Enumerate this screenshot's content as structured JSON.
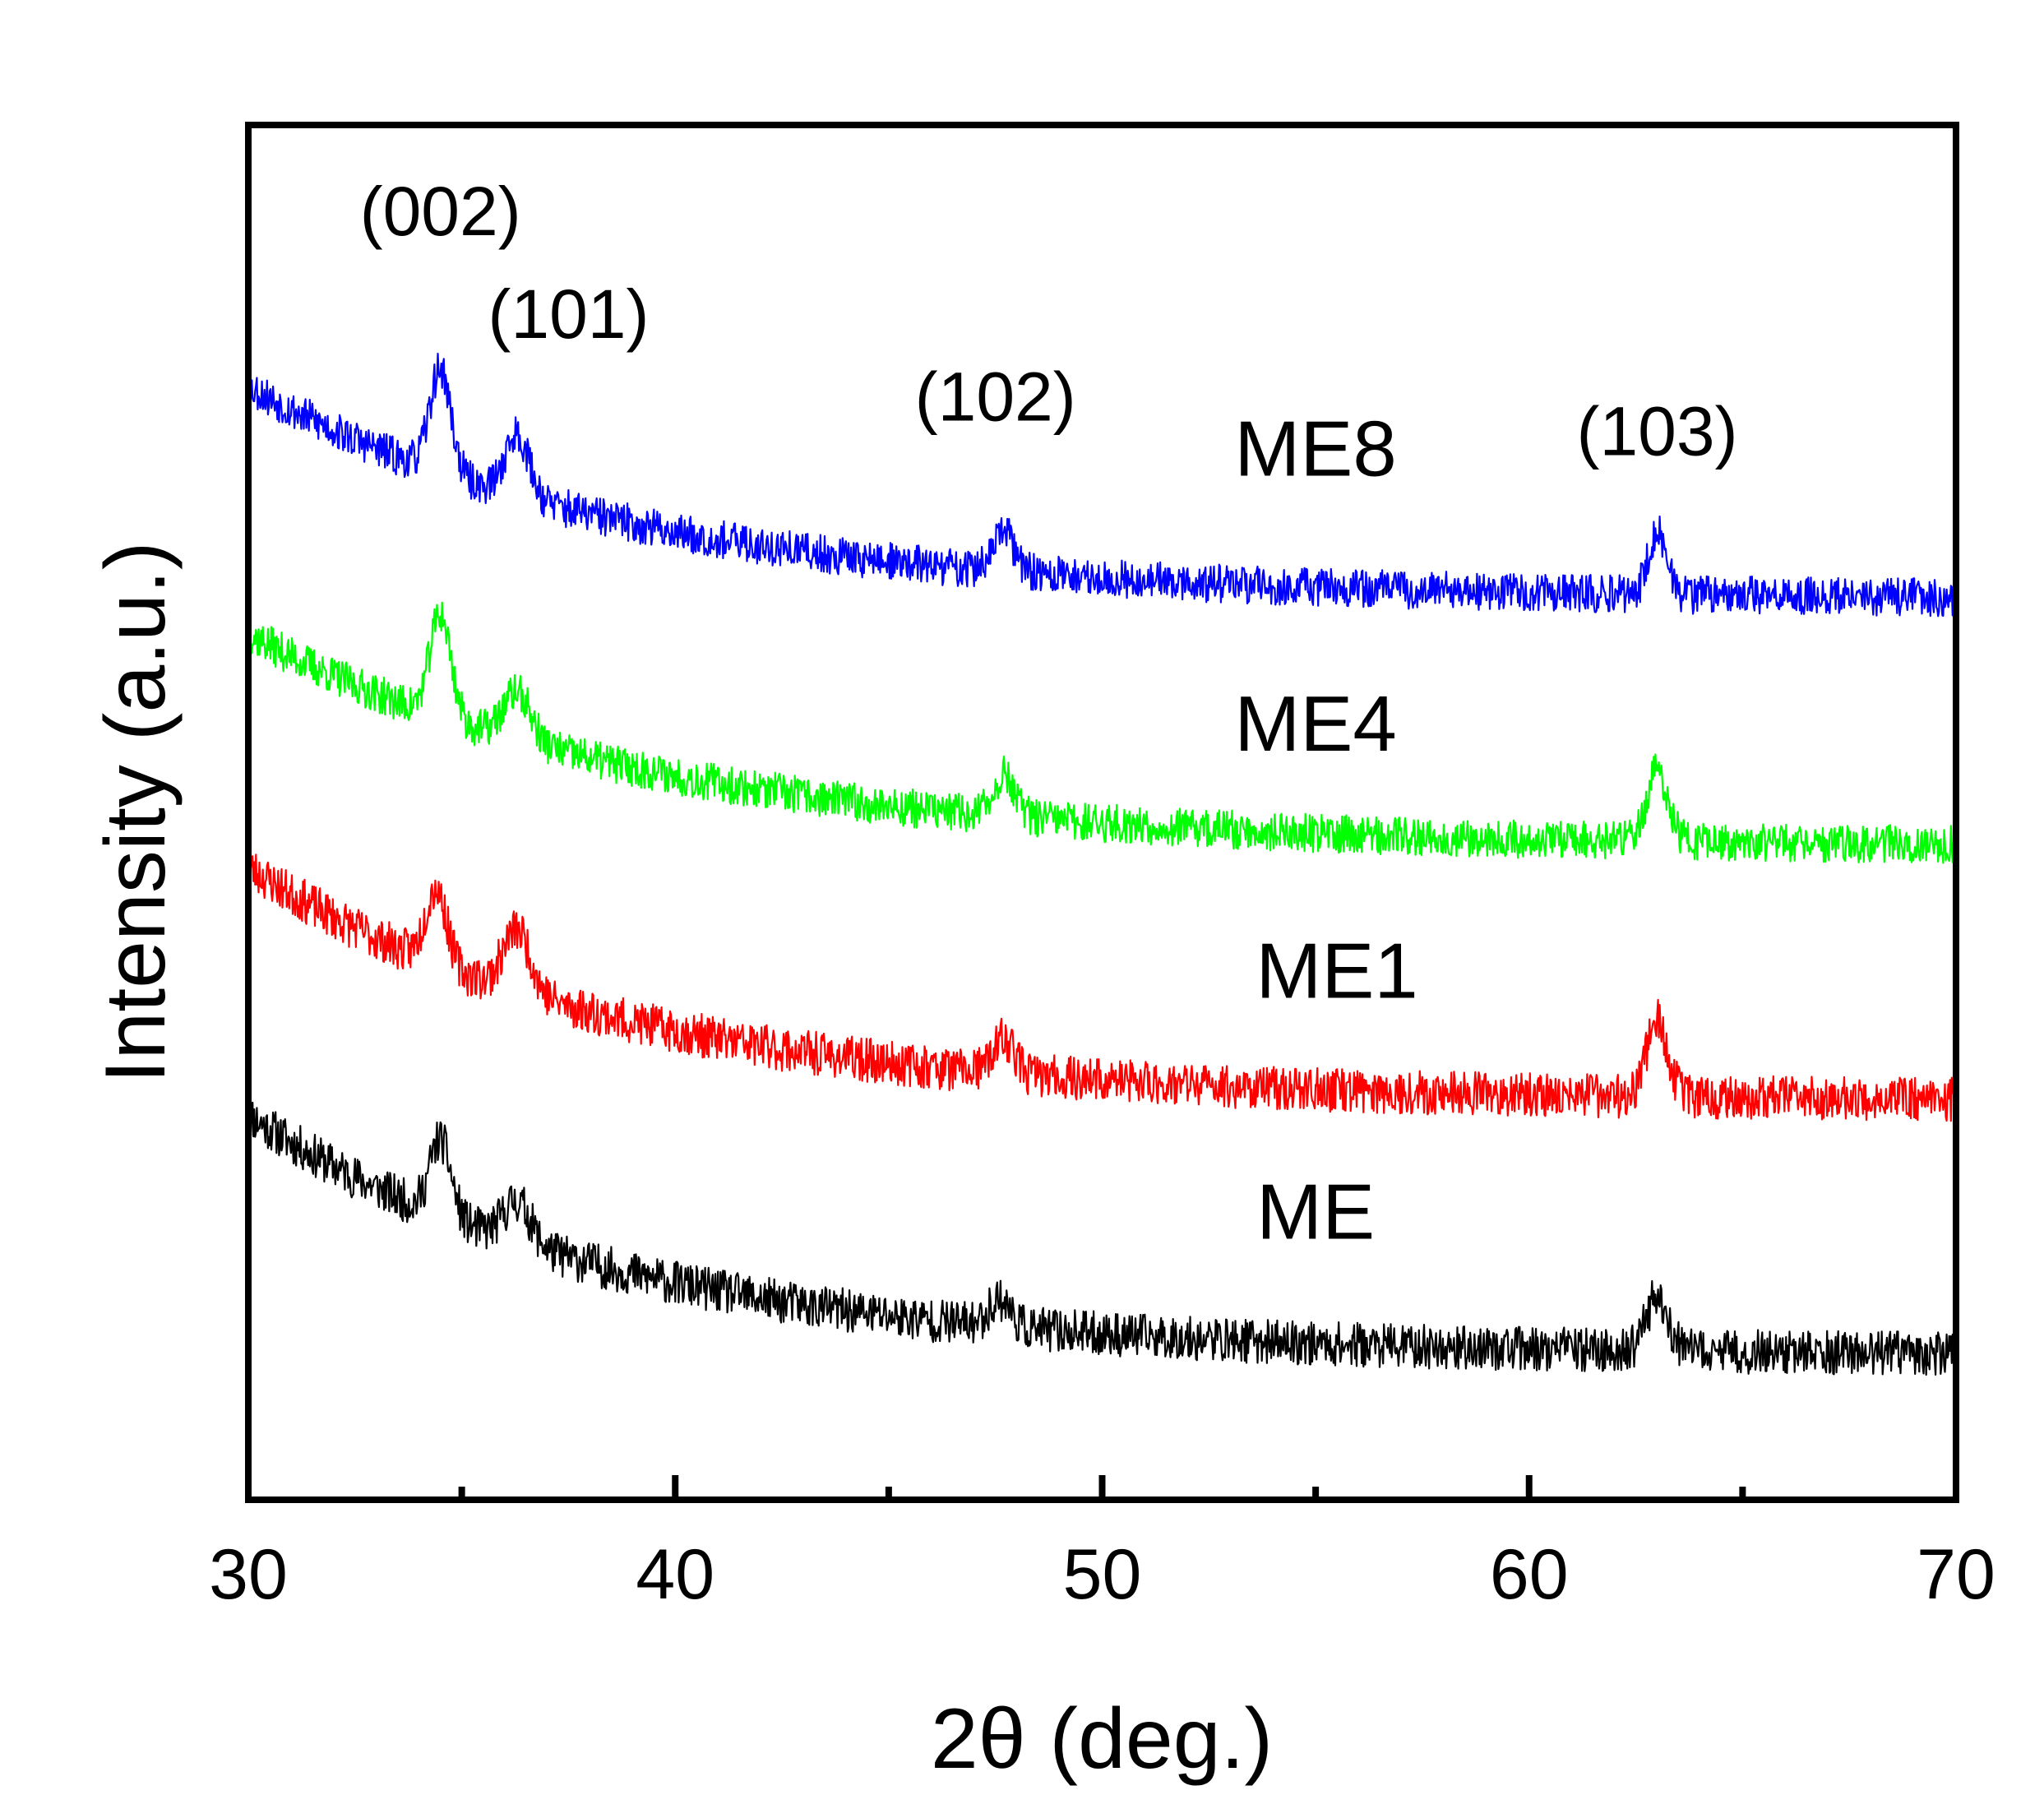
{
  "chart_data": {
    "type": "line",
    "title": "",
    "xlabel": "2θ (deg.)",
    "ylabel": "Intensity (a.u.)",
    "xlim": [
      30,
      70
    ],
    "ylim": [
      0,
      10
    ],
    "x_ticks": [
      30,
      40,
      50,
      60,
      70
    ],
    "x_tick_labels": [
      "30",
      "40",
      "50",
      "60",
      "70"
    ],
    "x_minor_ticks": [
      35,
      45,
      55,
      65
    ],
    "grid": false,
    "legend": "none",
    "series": [
      {
        "name": "ME",
        "color": "#000000",
        "offset": 1.25,
        "base_start": 2.8,
        "base_end": 1.05,
        "decay": 0.12,
        "noise": 0.16,
        "seed": 11,
        "peaks": [
          {
            "x": 34.5,
            "h": 0.55,
            "w": 0.35
          },
          {
            "x": 36.3,
            "h": 0.3,
            "w": 0.45
          },
          {
            "x": 47.6,
            "h": 0.2,
            "w": 0.35
          },
          {
            "x": 63.0,
            "h": 0.4,
            "w": 0.35
          }
        ]
      },
      {
        "name": "ME1",
        "color": "#ff0000",
        "offset": 3.0,
        "base_start": 4.6,
        "base_end": 2.9,
        "decay": 0.12,
        "noise": 0.16,
        "seed": 23,
        "peaks": [
          {
            "x": 34.4,
            "h": 0.55,
            "w": 0.35
          },
          {
            "x": 36.3,
            "h": 0.45,
            "w": 0.45
          },
          {
            "x": 47.7,
            "h": 0.25,
            "w": 0.35
          },
          {
            "x": 63.0,
            "h": 0.55,
            "w": 0.35
          }
        ]
      },
      {
        "name": "ME4",
        "color": "#00ff00",
        "offset": 4.75,
        "base_start": 6.3,
        "base_end": 4.75,
        "decay": 0.11,
        "noise": 0.14,
        "seed": 37,
        "peaks": [
          {
            "x": 34.5,
            "h": 0.75,
            "w": 0.35
          },
          {
            "x": 36.3,
            "h": 0.35,
            "w": 0.45
          },
          {
            "x": 47.7,
            "h": 0.3,
            "w": 0.35
          },
          {
            "x": 63.0,
            "h": 0.5,
            "w": 0.35
          }
        ]
      },
      {
        "name": "ME8",
        "color": "#0000ff",
        "offset": 6.6,
        "base_start": 8.1,
        "base_end": 6.55,
        "decay": 0.115,
        "noise": 0.14,
        "seed": 53,
        "peaks": [
          {
            "x": 34.5,
            "h": 0.75,
            "w": 0.35
          },
          {
            "x": 36.3,
            "h": 0.45,
            "w": 0.4
          },
          {
            "x": 47.7,
            "h": 0.28,
            "w": 0.35
          },
          {
            "x": 63.0,
            "h": 0.45,
            "w": 0.3
          }
        ]
      }
    ],
    "annotations": [
      {
        "text": "(002)",
        "x": 34.5,
        "y": 9.2
      },
      {
        "text": "(101)",
        "x": 37.5,
        "y": 8.45
      },
      {
        "text": "(102)",
        "x": 47.5,
        "y": 7.85
      },
      {
        "text": "(103)",
        "x": 63.0,
        "y": 7.6
      }
    ],
    "series_labels": [
      {
        "text": "ME8",
        "x": 55.0,
        "y": 7.45
      },
      {
        "text": "ME4",
        "x": 55.0,
        "y": 5.45
      },
      {
        "text": "ME1",
        "x": 55.5,
        "y": 3.65
      },
      {
        "text": "ME",
        "x": 55.0,
        "y": 1.9
      }
    ]
  }
}
